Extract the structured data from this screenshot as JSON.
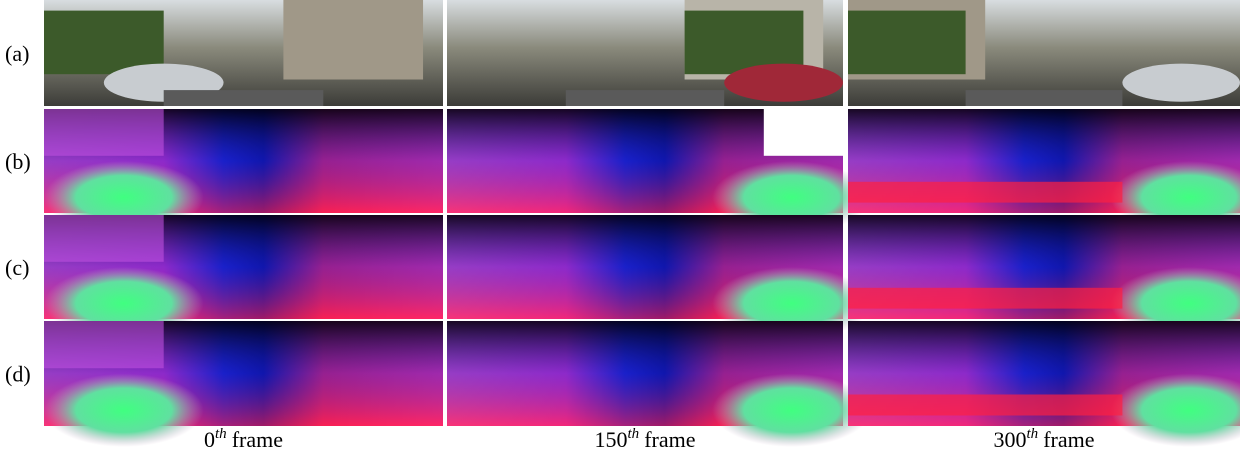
{
  "figure": {
    "rows": [
      {
        "label": "(a)"
      },
      {
        "label": "(b)"
      },
      {
        "label": "(c)"
      },
      {
        "label": "(d)"
      }
    ],
    "columns": [
      {
        "number": "0",
        "superscript": "th",
        "word": "frame"
      },
      {
        "number": "150",
        "superscript": "th",
        "word": "frame"
      },
      {
        "number": "300",
        "superscript": "th",
        "word": "frame"
      }
    ]
  }
}
